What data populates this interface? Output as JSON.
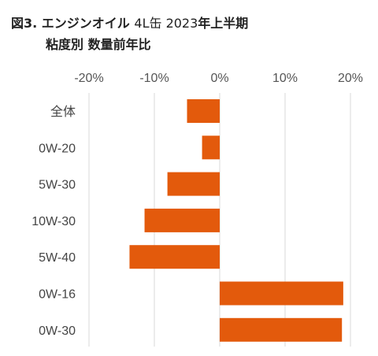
{
  "title": {
    "fig_prefix": "図3.",
    "main_bold": "エンジンオイル",
    "main_light": "4L缶 2023",
    "main_tail": "年上半期",
    "subtitle": "粘度別 数量前年比"
  },
  "colors": {
    "bar": "#E35A0C",
    "grid": "#d9d9d9",
    "text": "#444444"
  },
  "chart_data": {
    "type": "bar",
    "orientation": "horizontal",
    "title": "図3. エンジンオイル 4L缶 2023年上半期 粘度別 数量前年比",
    "xlabel": "",
    "ylabel": "",
    "xlim": [
      -0.2,
      0.2
    ],
    "xticks": [
      -0.2,
      -0.1,
      0.0,
      0.1,
      0.2
    ],
    "xtick_labels": [
      "-20%",
      "-10%",
      "0%",
      "10%",
      "20%"
    ],
    "grid": "vertical",
    "legend": "none",
    "categories": [
      "全体",
      "0W-20",
      "5W-30",
      "10W-30",
      "5W-40",
      "0W-16",
      "0W-30"
    ],
    "values": [
      -0.05,
      -0.027,
      -0.08,
      -0.115,
      -0.138,
      0.189,
      0.187
    ]
  }
}
